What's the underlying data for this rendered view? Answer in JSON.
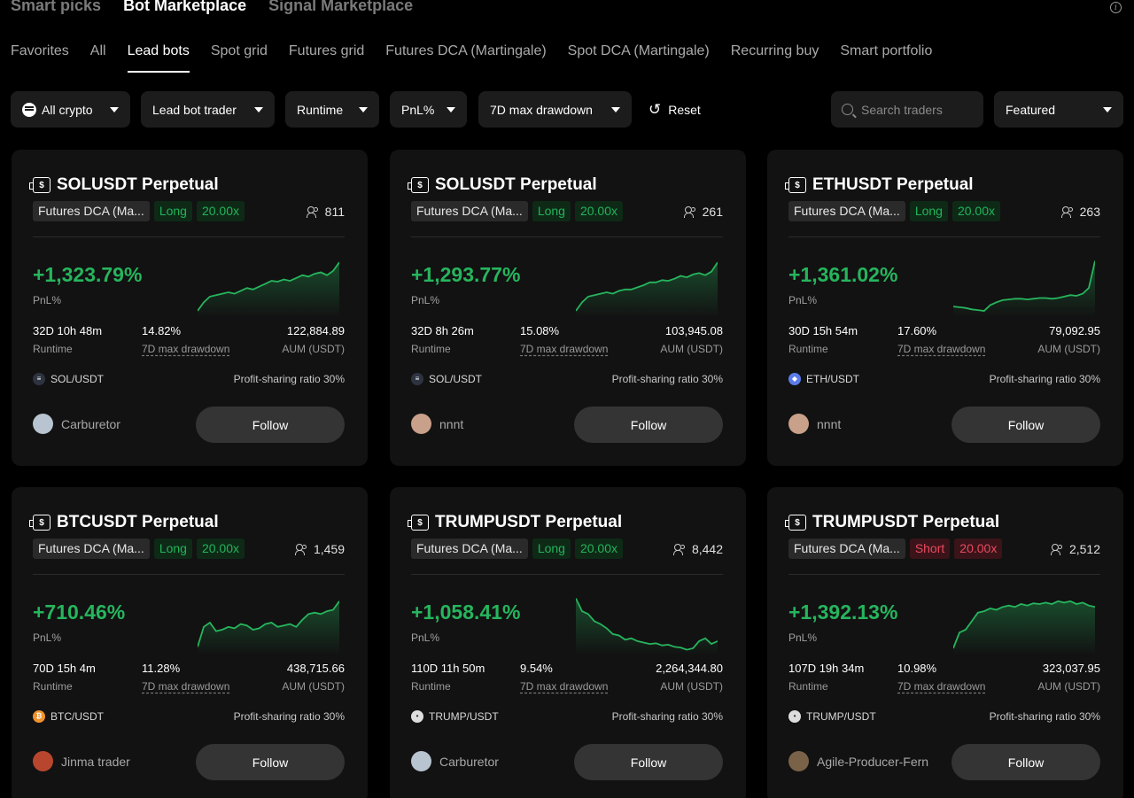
{
  "top_tabs": [
    {
      "label": "Smart picks",
      "active": false
    },
    {
      "label": "Bot Marketplace",
      "active": true
    },
    {
      "label": "Signal Marketplace",
      "active": false
    }
  ],
  "sub_tabs": [
    {
      "label": "Favorites",
      "active": false
    },
    {
      "label": "All",
      "active": false
    },
    {
      "label": "Lead bots",
      "active": true
    },
    {
      "label": "Spot grid",
      "active": false
    },
    {
      "label": "Futures grid",
      "active": false
    },
    {
      "label": "Futures DCA (Martingale)",
      "active": false
    },
    {
      "label": "Spot DCA (Martingale)",
      "active": false
    },
    {
      "label": "Recurring buy",
      "active": false
    },
    {
      "label": "Smart portfolio",
      "active": false
    }
  ],
  "filters": {
    "crypto": "All crypto",
    "trader": "Lead bot trader",
    "runtime": "Runtime",
    "pnl": "PnL%",
    "drawdown": "7D max drawdown",
    "reset": "Reset",
    "search_placeholder": "Search traders",
    "sort": "Featured"
  },
  "colors": {
    "profit": "#26b55d",
    "long_bg": "#0e2a17",
    "short": "#e84a5f",
    "card_bg": "#121212",
    "button_bg": "#343434"
  },
  "cards": [
    {
      "title": "SOLUSDT Perpetual",
      "strategy": "Futures DCA (Ma...",
      "direction": "Long",
      "leverage": "20.00x",
      "followers": "811",
      "pnl": "+1,323.79%",
      "pnl_label": "PnL%",
      "runtime": "32D 10h 48m",
      "runtime_label": "Runtime",
      "drawdown": "14.82%",
      "drawdown_label": "7D max drawdown",
      "aum": "122,884.89",
      "aum_label": "AUM (USDT)",
      "pair": "SOL/USDT",
      "pair_icon": "sol",
      "ratio": "Profit-sharing ratio 30%",
      "trader": "Carburetor",
      "avatar_color": "#b8c4d0",
      "follow": "Follow",
      "spark": [
        10,
        22,
        30,
        32,
        34,
        36,
        34,
        38,
        42,
        40,
        44,
        48,
        52,
        51,
        54,
        52,
        56,
        60,
        58,
        62,
        64,
        60,
        66,
        78
      ]
    },
    {
      "title": "SOLUSDT Perpetual",
      "strategy": "Futures DCA (Ma...",
      "direction": "Long",
      "leverage": "20.00x",
      "followers": "261",
      "pnl": "+1,293.77%",
      "pnl_label": "PnL%",
      "runtime": "32D 8h 26m",
      "runtime_label": "Runtime",
      "drawdown": "15.08%",
      "drawdown_label": "7D max drawdown",
      "aum": "103,945.08",
      "aum_label": "AUM (USDT)",
      "pair": "SOL/USDT",
      "pair_icon": "sol",
      "ratio": "Profit-sharing ratio 30%",
      "trader": "nnnt",
      "avatar_color": "#c9a08a",
      "follow": "Follow",
      "spark": [
        10,
        22,
        30,
        32,
        34,
        36,
        34,
        38,
        40,
        40,
        43,
        46,
        50,
        50,
        53,
        52,
        55,
        59,
        57,
        61,
        63,
        60,
        65,
        78
      ]
    },
    {
      "title": "ETHUSDT Perpetual",
      "strategy": "Futures DCA (Ma...",
      "direction": "Long",
      "leverage": "20.00x",
      "followers": "263",
      "pnl": "+1,361.02%",
      "pnl_label": "PnL%",
      "runtime": "30D 15h 54m",
      "runtime_label": "Runtime",
      "drawdown": "17.60%",
      "drawdown_label": "7D max drawdown",
      "aum": "79,092.95",
      "aum_label": "AUM (USDT)",
      "pair": "ETH/USDT",
      "pair_icon": "eth",
      "ratio": "Profit-sharing ratio 30%",
      "trader": "nnnt",
      "avatar_color": "#c9a08a",
      "follow": "Follow",
      "spark": [
        16,
        15,
        14,
        12,
        11,
        10,
        18,
        22,
        25,
        26,
        27,
        27,
        26,
        27,
        28,
        28,
        27,
        28,
        30,
        32,
        31,
        34,
        42,
        80
      ]
    },
    {
      "title": "BTCUSDT Perpetual",
      "strategy": "Futures DCA (Ma...",
      "direction": "Long",
      "leverage": "20.00x",
      "followers": "1,459",
      "pnl": "+710.46%",
      "pnl_label": "PnL%",
      "runtime": "70D 15h 4m",
      "runtime_label": "Runtime",
      "drawdown": "11.28%",
      "drawdown_label": "7D max drawdown",
      "aum": "438,715.66",
      "aum_label": "AUM (USDT)",
      "pair": "BTC/USDT",
      "pair_icon": "btc",
      "ratio": "Profit-sharing ratio 30%",
      "trader": "Jinma trader",
      "avatar_color": "#b8462e",
      "follow": "Follow",
      "spark": [
        12,
        40,
        46,
        34,
        36,
        40,
        38,
        44,
        42,
        36,
        38,
        44,
        46,
        40,
        42,
        44,
        40,
        50,
        58,
        60,
        58,
        62,
        64,
        76
      ]
    },
    {
      "title": "TRUMPUSDT Perpetual",
      "strategy": "Futures DCA (Ma...",
      "direction": "Long",
      "leverage": "20.00x",
      "followers": "8,442",
      "pnl": "+1,058.41%",
      "pnl_label": "PnL%",
      "runtime": "110D 11h 50m",
      "runtime_label": "Runtime",
      "drawdown": "9.54%",
      "drawdown_label": "7D max drawdown",
      "aum": "2,264,344.80",
      "aum_label": "AUM (USDT)",
      "pair": "TRUMP/USDT",
      "pair_icon": "trump",
      "ratio": "Profit-sharing ratio 30%",
      "trader": "Carburetor",
      "avatar_color": "#b8c4d0",
      "follow": "Follow",
      "spark": [
        80,
        62,
        58,
        48,
        44,
        38,
        30,
        28,
        22,
        24,
        20,
        18,
        16,
        17,
        14,
        15,
        12,
        11,
        8,
        10,
        20,
        24,
        16,
        20
      ]
    },
    {
      "title": "TRUMPUSDT Perpetual",
      "strategy": "Futures DCA (Ma...",
      "direction": "Short",
      "leverage": "20.00x",
      "followers": "2,512",
      "pnl": "+1,392.13%",
      "pnl_label": "PnL%",
      "runtime": "107D 19h 34m",
      "runtime_label": "Runtime",
      "drawdown": "10.98%",
      "drawdown_label": "7D max drawdown",
      "aum": "323,037.95",
      "aum_label": "AUM (USDT)",
      "pair": "TRUMP/USDT",
      "pair_icon": "trump",
      "ratio": "Profit-sharing ratio 30%",
      "trader": "Agile-Producer-Fern",
      "avatar_color": "#7a6248",
      "follow": "Follow",
      "spark": [
        10,
        32,
        36,
        48,
        60,
        62,
        66,
        64,
        68,
        70,
        68,
        72,
        70,
        73,
        72,
        74,
        72,
        76,
        74,
        76,
        72,
        74,
        70,
        68
      ]
    }
  ]
}
